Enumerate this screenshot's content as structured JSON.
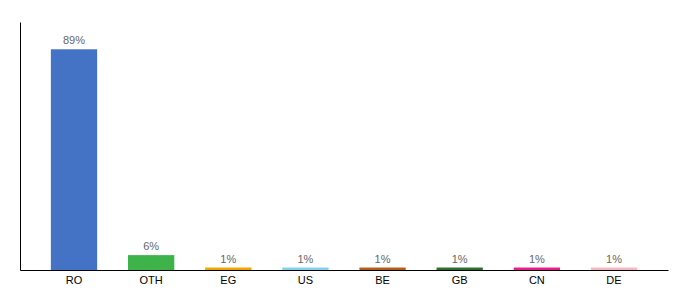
{
  "chart_data": {
    "type": "bar",
    "categories": [
      "RO",
      "OTH",
      "EG",
      "US",
      "BE",
      "GB",
      "CN",
      "DE"
    ],
    "values": [
      89,
      6,
      1,
      1,
      1,
      1,
      1,
      1
    ],
    "value_labels": [
      "89%",
      "6%",
      "1%",
      "1%",
      "1%",
      "1%",
      "1%",
      "1%"
    ],
    "colors": [
      "#4472c4",
      "#3db34a",
      "#f0a500",
      "#87ceeb",
      "#b35c1e",
      "#2d6e2d",
      "#e91e8c",
      "#f4b8c1"
    ],
    "ylim": [
      0,
      100
    ],
    "data_labels": true,
    "tick_labels": "x"
  }
}
